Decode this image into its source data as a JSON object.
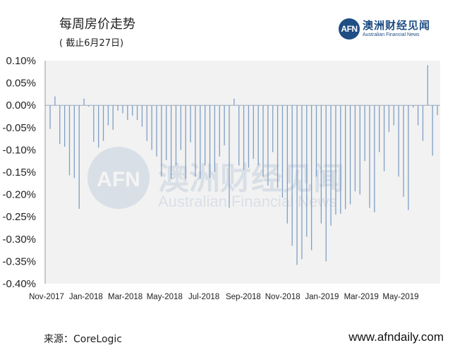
{
  "title": "每周房价走势",
  "subtitle": "( 截止6月27日)",
  "brand": {
    "logo_text": "AFN",
    "name_cn": "澳洲财经见闻",
    "name_en": "Australian Financial News"
  },
  "watermark": {
    "logo_text": "AFN",
    "name_cn": "澳洲财经见闻",
    "name_en": "Australian Financial News"
  },
  "source": "来源：CoreLogic",
  "website": "www.afndaily.com",
  "colors": {
    "bar": "#7f9fc5",
    "plot_bg": "#f2f2f2",
    "brand": "#1f4e84"
  },
  "chart_data": {
    "type": "bar",
    "ylim": [
      -0.4,
      0.1
    ],
    "y_ticks": [
      "0.10%",
      "0.05%",
      "0.00%",
      "-0.05%",
      "-0.10%",
      "-0.15%",
      "-0.20%",
      "-0.25%",
      "-0.30%",
      "-0.35%",
      "-0.40%"
    ],
    "x_ticks": [
      "Nov-2017",
      "Jan-2018",
      "Mar-2018",
      "May-2018",
      "Jul-2018",
      "Sep-2018",
      "Nov-2018",
      "Jan-2019",
      "Mar-2019",
      "May-2019"
    ],
    "grid": false,
    "values": [
      -0.053,
      0.02,
      -0.087,
      -0.093,
      -0.157,
      -0.163,
      -0.232,
      0.015,
      -0.003,
      -0.082,
      -0.095,
      -0.08,
      -0.045,
      -0.055,
      -0.012,
      -0.018,
      -0.033,
      -0.023,
      -0.033,
      -0.048,
      -0.08,
      -0.1,
      -0.115,
      -0.16,
      -0.123,
      -0.165,
      -0.135,
      -0.1,
      -0.165,
      -0.083,
      -0.16,
      -0.165,
      -0.135,
      -0.163,
      -0.15,
      -0.115,
      -0.09,
      -0.23,
      0.015,
      -0.135,
      -0.145,
      -0.14,
      -0.12,
      -0.135,
      -0.16,
      -0.18,
      -0.105,
      -0.185,
      -0.207,
      -0.265,
      -0.315,
      -0.358,
      -0.345,
      -0.295,
      -0.325,
      -0.16,
      -0.265,
      -0.35,
      -0.27,
      -0.245,
      -0.243,
      -0.233,
      -0.222,
      -0.193,
      -0.2,
      -0.125,
      -0.23,
      -0.24,
      -0.105,
      -0.148,
      -0.06,
      -0.045,
      -0.16,
      -0.205,
      -0.235,
      -0.005,
      -0.045,
      -0.08,
      0.09,
      -0.113,
      -0.022
    ]
  }
}
